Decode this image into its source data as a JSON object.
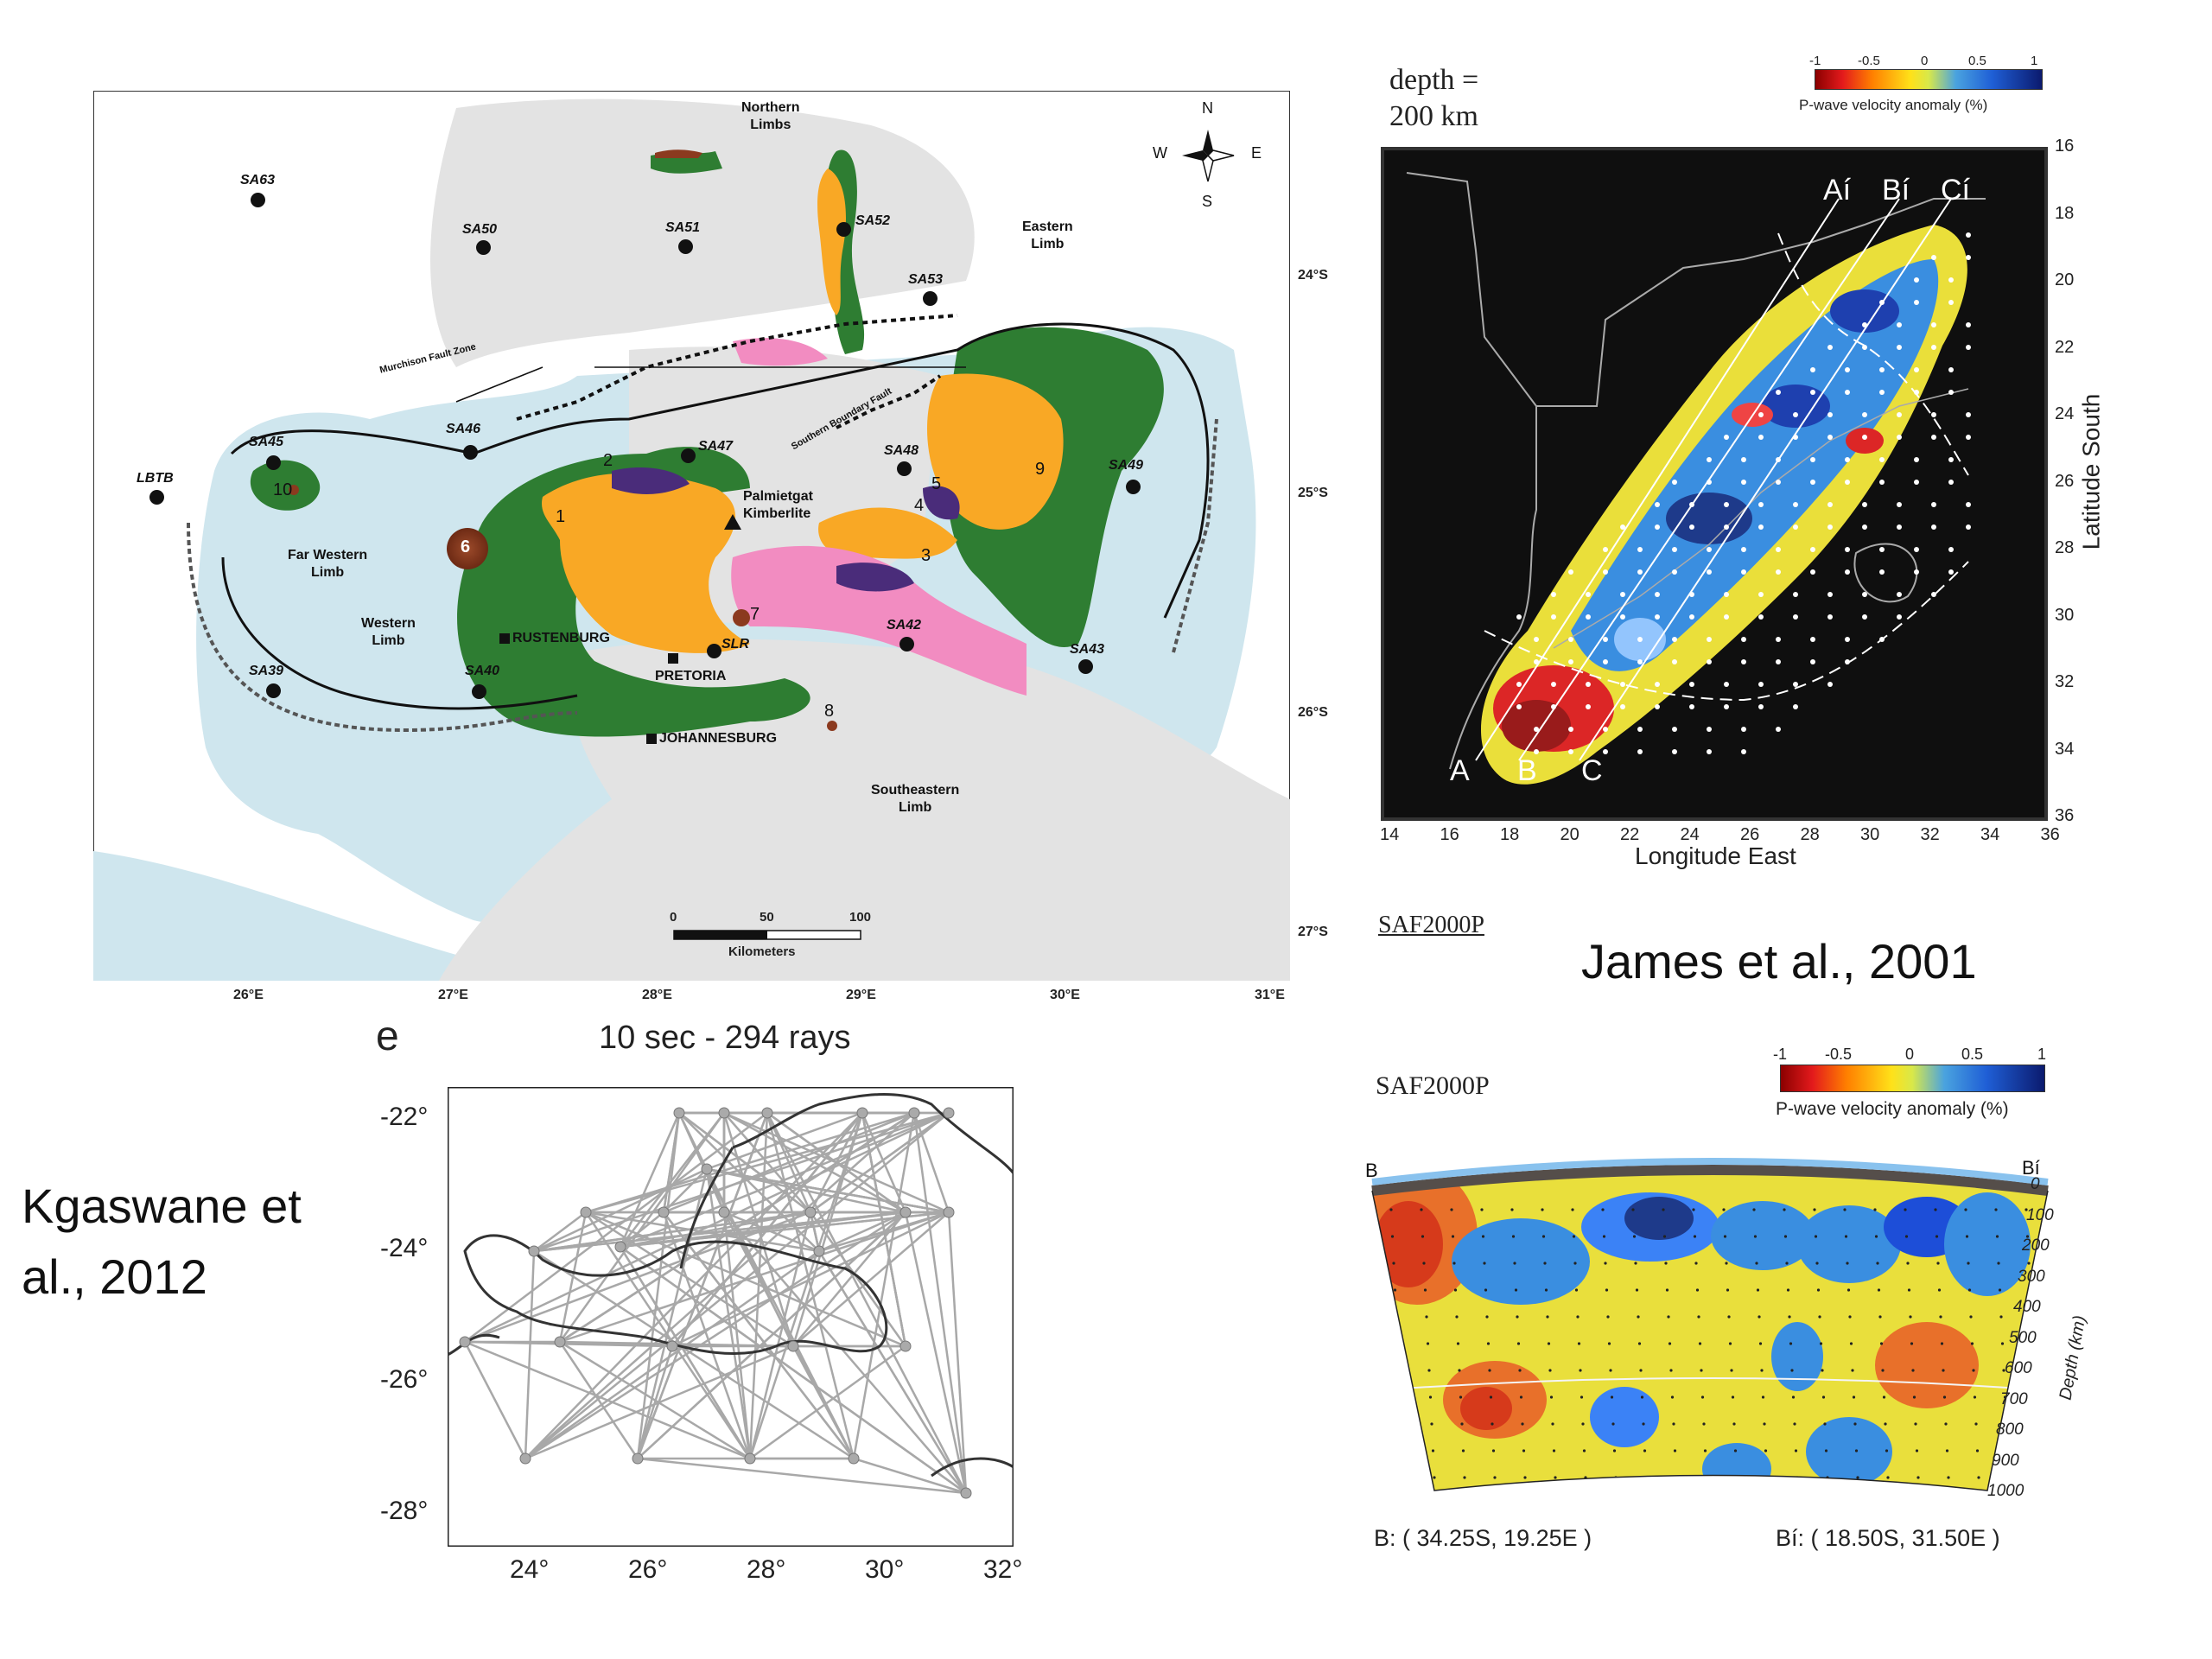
{
  "geology_map": {
    "region_labels": {
      "northern_limbs": [
        "Northern",
        "Limbs"
      ],
      "eastern_limb": [
        "Eastern",
        "Limb"
      ],
      "far_western_limb": [
        "Far Western",
        "Limb"
      ],
      "western_limb": [
        "Western",
        "Limb"
      ],
      "southeastern_limb": [
        "Southeastern",
        "Limb"
      ],
      "murchison": "Murchison Fault Zone",
      "southern_boundary": "Southern Boundary Fault",
      "palmietgat": [
        "Palmietgat",
        "Kimberlite"
      ]
    },
    "stations": [
      "SA63",
      "SA50",
      "SA51",
      "SA52",
      "SA53",
      "SA45",
      "SA46",
      "SA47",
      "SA48",
      "SA49",
      "LBTB",
      "SA39",
      "SA40",
      "SA42",
      "SA43",
      "SLR"
    ],
    "cities": [
      "RUSTENBURG",
      "PRETORIA",
      "JOHANNESBURG"
    ],
    "numbers": [
      "1",
      "2",
      "3",
      "4",
      "5",
      "6",
      "7",
      "8",
      "9",
      "10"
    ],
    "lon_ticks": [
      "26°E",
      "27°E",
      "28°E",
      "29°E",
      "30°E",
      "31°E"
    ],
    "lat_ticks": [
      "24°S",
      "25°S",
      "26°S",
      "27°S"
    ],
    "compass": {
      "n": "N",
      "s": "S",
      "e": "E",
      "w": "W"
    },
    "scale": {
      "ticks": [
        "0",
        "50",
        "100"
      ],
      "unit": "Kilometers"
    },
    "colors": {
      "sea": "#cfe6ee",
      "land": "#e4e4e4",
      "green": "#2e7d32",
      "orange": "#f9a825",
      "pink": "#f28cc1",
      "purple": "#4a2c7a",
      "brown": "#8b3a1f"
    }
  },
  "tomo_map": {
    "depth_label": [
      "depth =",
      "200 km"
    ],
    "colorbar": {
      "ticks": [
        "-1",
        "-0.5",
        "0",
        "0.5",
        "1"
      ],
      "label": "P-wave velocity anomaly (%)"
    },
    "profile_labels": [
      "Aí",
      "Bí",
      "Cí",
      "A",
      "B",
      "C"
    ],
    "lat_ticks": [
      "16",
      "18",
      "20",
      "22",
      "24",
      "26",
      "28",
      "30",
      "32",
      "34",
      "36"
    ],
    "lon_ticks": [
      "14",
      "16",
      "18",
      "20",
      "22",
      "24",
      "26",
      "28",
      "30",
      "32",
      "34",
      "36"
    ],
    "xlabel": "Longitude East",
    "ylabel": "Latitude South",
    "model_name": "SAF2000P"
  },
  "citations": {
    "james": "James et al., 2001",
    "kgaswane": [
      "Kgaswane et",
      "al., 2012"
    ]
  },
  "ray_plot": {
    "panel_letter": "e",
    "title": "10 sec - 294 rays",
    "lat_ticks": [
      "-22°",
      "-24°",
      "-26°",
      "-28°"
    ],
    "lon_ticks": [
      "24°",
      "26°",
      "28°",
      "30°",
      "32°"
    ]
  },
  "cross_section": {
    "model_name": "SAF2000P",
    "colorbar": {
      "ticks": [
        "-1",
        "-0.5",
        "0",
        "0.5",
        "1"
      ],
      "label": "P-wave velocity anomaly (%)"
    },
    "end_left": "B",
    "end_right": "Bí",
    "depth_ticks": [
      "0",
      "100",
      "200",
      "300",
      "400",
      "500",
      "600",
      "700",
      "800",
      "900",
      "1000"
    ],
    "depth_label": "Depth (km)",
    "coord_left": "B: ( 34.25S,  19.25E )",
    "coord_right": "Bí: ( 18.50S,  31.50E )"
  }
}
